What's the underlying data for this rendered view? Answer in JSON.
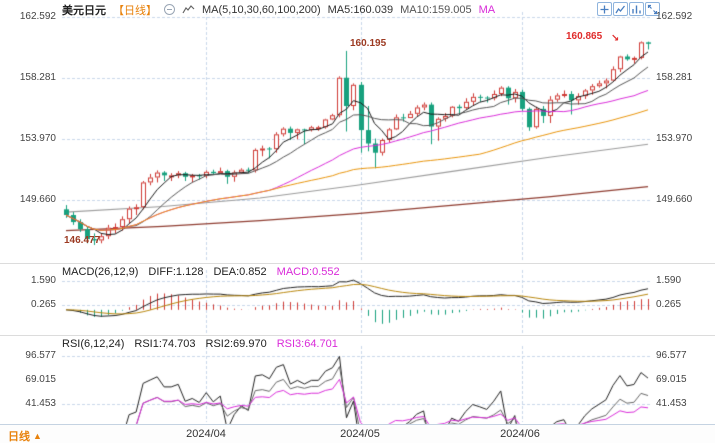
{
  "header": {
    "title": "美元日元",
    "period": "【日线】",
    "ma_label": "MA(5,10,30,60,100,200)",
    "ma5": "MA5:160.039",
    "ma10": "MA10:159.005",
    "ma30_part": "MA"
  },
  "icons": {
    "header": [
      "info-circle-icon",
      "ma-trend-icon"
    ],
    "toolbar": [
      "zoom-in-icon",
      "line-chart-icon",
      "bar-chart-icon",
      "expand-icon"
    ]
  },
  "main_chart": {
    "y_labels": [
      "162.592",
      "158.281",
      "153.970",
      "149.660"
    ],
    "annotations": {
      "spike_high": "160.195",
      "latest_high": "160.865",
      "low": "146.477",
      "arrow": "↘"
    }
  },
  "macd_panel": {
    "title": "MACD(26,12,9)",
    "diff": "DIFF:1.128",
    "dea": "DEA:0.852",
    "macd": "MACD:0.552",
    "y_labels": [
      "1.590",
      "0.265"
    ]
  },
  "rsi_panel": {
    "title": "RSI(6,12,24)",
    "rsi1": "RSI1:74.703",
    "rsi2": "RSI2:69.970",
    "rsi3": "RSI3:64.701",
    "y_labels": [
      "96.577",
      "69.015",
      "41.453"
    ]
  },
  "footer": {
    "period": "日线",
    "arrow": "▲",
    "x_labels": [
      "2024/04",
      "2024/05",
      "2024/06"
    ]
  },
  "colors": {
    "up": "#cf3a35",
    "down": "#17a17e",
    "grid": "#c8d7ea",
    "magenta": "#d92bd9",
    "accent_orange": "#e8820c",
    "annotation_red": "#e02b2b",
    "annotation_maroon": "#9c3a22"
  },
  "chart_data": {
    "type": "candlestick",
    "title": "美元日元 日线 (USD/JPY Daily) with MA, MACD, RSI",
    "y_ticks_price": [
      162.592,
      158.281,
      153.97,
      149.66
    ],
    "x_labels": [
      "2024/04",
      "2024/05",
      "2024/06"
    ],
    "month_start_indices": [
      20,
      42,
      65
    ],
    "annotated_values": {
      "spike_high": 160.195,
      "latest_high": 160.865,
      "low": 146.477
    },
    "candles": [
      [
        149.0,
        149.3,
        148.4,
        148.6
      ],
      [
        148.6,
        148.8,
        147.9,
        148.1
      ],
      [
        148.1,
        148.3,
        147.4,
        147.6
      ],
      [
        147.6,
        147.8,
        146.6,
        146.9
      ],
      [
        146.9,
        147.3,
        146.477,
        146.8
      ],
      [
        146.8,
        147.3,
        146.6,
        147.1
      ],
      [
        147.1,
        147.9,
        146.9,
        147.7
      ],
      [
        147.7,
        148.0,
        147.3,
        147.75
      ],
      [
        147.75,
        148.5,
        147.5,
        148.3
      ],
      [
        148.3,
        149.2,
        148.0,
        149.05
      ],
      [
        149.05,
        149.35,
        148.6,
        149.15
      ],
      [
        149.15,
        151.0,
        149.0,
        150.9
      ],
      [
        150.9,
        151.5,
        150.7,
        151.25
      ],
      [
        151.25,
        151.75,
        150.9,
        151.6
      ],
      [
        151.6,
        151.7,
        151.0,
        151.4
      ],
      [
        151.4,
        151.55,
        151.0,
        151.4
      ],
      [
        151.4,
        151.7,
        151.2,
        151.55
      ],
      [
        151.55,
        151.65,
        151.0,
        151.3
      ],
      [
        151.3,
        151.5,
        150.9,
        151.4
      ],
      [
        151.4,
        151.5,
        151.1,
        151.35
      ],
      [
        151.35,
        151.75,
        151.2,
        151.65
      ],
      [
        151.65,
        151.8,
        151.45,
        151.55
      ],
      [
        151.55,
        151.95,
        151.5,
        151.7
      ],
      [
        151.7,
        151.8,
        150.8,
        151.3
      ],
      [
        151.3,
        151.75,
        150.95,
        151.6
      ],
      [
        151.6,
        151.9,
        151.5,
        151.8
      ],
      [
        151.8,
        151.95,
        151.55,
        151.75
      ],
      [
        151.75,
        153.3,
        151.6,
        153.2
      ],
      [
        153.2,
        153.5,
        152.75,
        153.3
      ],
      [
        153.3,
        153.4,
        152.6,
        153.25
      ],
      [
        153.25,
        154.45,
        153.0,
        154.3
      ],
      [
        154.3,
        154.8,
        154.15,
        154.7
      ],
      [
        154.7,
        154.85,
        153.9,
        154.4
      ],
      [
        154.4,
        154.7,
        153.95,
        154.65
      ],
      [
        154.65,
        154.7,
        153.6,
        154.6
      ],
      [
        154.6,
        154.9,
        154.5,
        154.8
      ],
      [
        154.8,
        154.9,
        154.55,
        154.8
      ],
      [
        154.8,
        155.4,
        154.7,
        155.35
      ],
      [
        155.35,
        155.75,
        155.3,
        155.65
      ],
      [
        155.65,
        158.4,
        155.5,
        158.3
      ],
      [
        158.3,
        160.195,
        154.5,
        156.3
      ],
      [
        156.3,
        157.9,
        156.0,
        157.8
      ],
      [
        157.8,
        158.0,
        153.0,
        154.6
      ],
      [
        154.6,
        156.3,
        153.1,
        153.65
      ],
      [
        153.65,
        154.0,
        151.9,
        153.0
      ],
      [
        153.0,
        154.0,
        152.8,
        153.9
      ],
      [
        153.9,
        154.75,
        153.7,
        154.65
      ],
      [
        154.65,
        155.7,
        154.6,
        155.5
      ],
      [
        155.5,
        155.75,
        155.2,
        155.45
      ],
      [
        155.45,
        155.95,
        155.45,
        155.75
      ],
      [
        155.75,
        156.35,
        155.6,
        156.2
      ],
      [
        156.2,
        156.55,
        156.0,
        156.4
      ],
      [
        156.4,
        156.55,
        153.6,
        154.85
      ],
      [
        154.85,
        155.5,
        153.85,
        155.4
      ],
      [
        155.4,
        155.8,
        155.2,
        155.6
      ],
      [
        155.6,
        156.3,
        155.5,
        156.25
      ],
      [
        156.25,
        156.4,
        155.8,
        156.15
      ],
      [
        156.15,
        156.85,
        156.05,
        156.6
      ],
      [
        156.6,
        157.2,
        156.35,
        156.95
      ],
      [
        156.95,
        157.1,
        156.6,
        156.9
      ],
      [
        156.9,
        157.0,
        156.55,
        156.85
      ],
      [
        156.85,
        157.4,
        156.7,
        157.15
      ],
      [
        157.15,
        157.7,
        157.0,
        157.6
      ],
      [
        157.6,
        157.7,
        156.4,
        156.85
      ],
      [
        156.85,
        157.5,
        156.55,
        157.3
      ],
      [
        157.3,
        157.45,
        155.95,
        156.1
      ],
      [
        156.1,
        156.2,
        154.55,
        154.8
      ],
      [
        154.8,
        156.25,
        154.7,
        156.1
      ],
      [
        156.1,
        156.3,
        155.1,
        155.6
      ],
      [
        155.6,
        157.0,
        155.1,
        156.75
      ],
      [
        156.75,
        157.2,
        156.6,
        157.05
      ],
      [
        157.05,
        157.4,
        156.9,
        157.15
      ],
      [
        157.15,
        157.35,
        155.7,
        156.7
      ],
      [
        156.7,
        157.2,
        156.4,
        157.0
      ],
      [
        157.0,
        157.5,
        156.8,
        157.4
      ],
      [
        157.4,
        157.85,
        157.1,
        157.7
      ],
      [
        157.7,
        158.1,
        157.6,
        157.9
      ],
      [
        157.9,
        158.25,
        157.55,
        158.1
      ],
      [
        158.1,
        159.1,
        158.0,
        158.9
      ],
      [
        158.9,
        159.85,
        158.7,
        159.8
      ],
      [
        159.8,
        159.95,
        159.5,
        159.6
      ],
      [
        159.6,
        159.8,
        159.3,
        159.7
      ],
      [
        159.7,
        160.865,
        159.6,
        160.8
      ],
      [
        160.8,
        160.85,
        160.3,
        160.7
      ]
    ],
    "ma_computed": [
      {
        "period": 5,
        "color": "#1a1a1a"
      },
      {
        "period": 10,
        "color": "#555555"
      },
      {
        "period": 30,
        "color": "#d92bd9"
      },
      {
        "period": 60,
        "color": "#e8940a"
      }
    ],
    "ma_synthetic": [
      {
        "name": "MA100",
        "color": "#9b9b9b",
        "points": [
          148.8,
          149.2,
          149.8,
          150.7,
          151.7,
          152.7,
          153.6
        ]
      },
      {
        "name": "MA200",
        "color": "#8e3b2f",
        "points": [
          147.5,
          147.8,
          148.2,
          148.7,
          149.3,
          149.9,
          150.6
        ]
      }
    ],
    "ma_values_shown": {
      "ma5": 160.039,
      "ma10": 159.005
    },
    "macd": {
      "params": "26,12,9",
      "y_ticks": [
        1.59,
        0.265
      ],
      "diff": 1.128,
      "dea": 0.852,
      "macd": 0.552
    },
    "rsi": {
      "params": "6,12,24",
      "y_ticks": [
        96.577,
        69.015,
        41.453
      ],
      "rsi1": 74.703,
      "rsi2": 69.97,
      "rsi3": 64.701
    }
  }
}
